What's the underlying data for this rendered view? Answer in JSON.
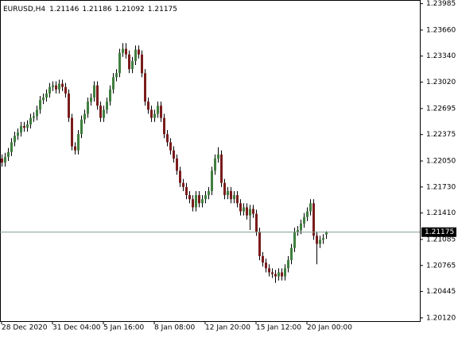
{
  "chart_data": {
    "type": "candlestick",
    "title": "EURUSD,H4",
    "categories": [
      "28 Dec 2020",
      null,
      null,
      null,
      null,
      null,
      null,
      null,
      null,
      null,
      null,
      null,
      null,
      null,
      null,
      null,
      "31 Dec 04:00",
      null,
      null,
      null,
      null,
      null,
      null,
      null,
      null,
      null,
      null,
      null,
      null,
      null,
      null,
      null,
      "5 Jan 16:00",
      null,
      null,
      null,
      null,
      null,
      null,
      null,
      null,
      null,
      null,
      null,
      null,
      null,
      null,
      null,
      "8 Jan 08:00",
      null,
      null,
      null,
      null,
      null,
      null,
      null,
      null,
      null,
      null,
      null,
      null,
      null,
      null,
      null,
      "12 Jan 20:00",
      null,
      null,
      null,
      null,
      null,
      null,
      null,
      null,
      null,
      null,
      null,
      null,
      null,
      null,
      null,
      "15 Jan 12:00",
      null,
      null,
      null,
      null,
      null,
      null,
      null,
      null,
      null,
      null,
      null,
      null,
      null,
      null,
      null,
      "20 Jan 00:00",
      null,
      null,
      null,
      null,
      null,
      null
    ],
    "open": [
      1.2208,
      1.2203,
      1.221,
      1.2216,
      1.2228,
      1.2236,
      1.224,
      1.2248,
      1.2246,
      1.225,
      1.2258,
      1.226,
      1.2268,
      1.228,
      1.2283,
      1.2288,
      1.2296,
      1.2298,
      1.2293,
      1.23,
      1.2296,
      1.2288,
      1.2258,
      1.2223,
      1.2218,
      1.2238,
      1.2256,
      1.2263,
      1.2278,
      1.2283,
      1.2298,
      1.2273,
      1.2258,
      1.2268,
      1.2278,
      1.2293,
      1.2308,
      1.2313,
      1.2338,
      1.2343,
      1.2336,
      1.2318,
      1.2328,
      1.2342,
      1.2336,
      1.2313,
      1.2278,
      1.2268,
      1.2258,
      1.2263,
      1.2273,
      1.2258,
      1.2238,
      1.2228,
      1.2218,
      1.2208,
      1.2193,
      1.2178,
      1.2173,
      1.2163,
      1.2158,
      1.2148,
      1.2163,
      1.2153,
      1.2158,
      1.2163,
      1.2168,
      1.2193,
      1.2208,
      1.2213,
      1.2178,
      1.2163,
      1.2168,
      1.2158,
      1.2163,
      1.2153,
      1.2143,
      1.2148,
      1.2138,
      1.2146,
      1.214,
      1.2118,
      1.2088,
      1.208,
      1.2073,
      1.2068,
      1.2066,
      1.2063,
      1.2068,
      1.2063,
      1.2073,
      1.2083,
      1.2098,
      1.2118,
      1.212,
      1.2128,
      1.2136,
      1.2143,
      1.2153,
      1.2113,
      1.2103,
      1.2108,
      1.21146
    ],
    "high": [
      1.2213,
      1.2215,
      1.2221,
      1.2233,
      1.2241,
      1.2245,
      1.2253,
      1.2253,
      1.2255,
      1.2263,
      1.2265,
      1.2273,
      1.2285,
      1.2288,
      1.2293,
      1.2301,
      1.2303,
      1.2303,
      1.2305,
      1.2305,
      1.2301,
      1.2293,
      1.2263,
      1.2228,
      1.2243,
      1.2261,
      1.2268,
      1.2283,
      1.2288,
      1.2303,
      1.2303,
      1.2278,
      1.2273,
      1.2283,
      1.2298,
      1.2313,
      1.2318,
      1.2343,
      1.235,
      1.235,
      1.2341,
      1.2333,
      1.2347,
      1.2347,
      1.2341,
      1.2318,
      1.2283,
      1.2273,
      1.2268,
      1.2278,
      1.2278,
      1.2263,
      1.2243,
      1.2233,
      1.2223,
      1.2213,
      1.2198,
      1.2183,
      1.2178,
      1.2168,
      1.2163,
      1.2168,
      1.2168,
      1.2163,
      1.2168,
      1.2173,
      1.2198,
      1.2213,
      1.2222,
      1.2218,
      1.2183,
      1.2173,
      1.2173,
      1.2168,
      1.2168,
      1.2158,
      1.2153,
      1.2153,
      1.2151,
      1.2151,
      1.2145,
      1.2123,
      1.2093,
      1.2085,
      1.2078,
      1.2073,
      1.2071,
      1.2073,
      1.2073,
      1.2078,
      1.2088,
      1.2103,
      1.2123,
      1.2125,
      1.2133,
      1.2141,
      1.2148,
      1.2158,
      1.2158,
      1.2118,
      1.2113,
      1.2115,
      1.21186
    ],
    "low": [
      1.2198,
      1.2198,
      1.2205,
      1.2211,
      1.2223,
      1.2231,
      1.2235,
      1.2241,
      1.2241,
      1.2245,
      1.2253,
      1.2255,
      1.2263,
      1.2275,
      1.2278,
      1.2283,
      1.2291,
      1.2288,
      1.2288,
      1.2291,
      1.2283,
      1.2253,
      1.2218,
      1.2213,
      1.2213,
      1.2233,
      1.2251,
      1.2258,
      1.2273,
      1.2278,
      1.2268,
      1.2253,
      1.2253,
      1.2263,
      1.2273,
      1.2288,
      1.2303,
      1.2308,
      1.2333,
      1.2331,
      1.2313,
      1.2313,
      1.2323,
      1.2331,
      1.2308,
      1.2273,
      1.2263,
      1.2253,
      1.2253,
      1.2258,
      1.2253,
      1.2233,
      1.2223,
      1.2213,
      1.2203,
      1.2188,
      1.2173,
      1.2168,
      1.2158,
      1.2153,
      1.2143,
      1.2143,
      1.2148,
      1.2148,
      1.2153,
      1.2158,
      1.2163,
      1.2188,
      1.2203,
      1.2173,
      1.2158,
      1.2158,
      1.2153,
      1.2153,
      1.2148,
      1.2138,
      1.2138,
      1.2133,
      1.212,
      1.2135,
      1.2113,
      1.2083,
      1.2075,
      1.2068,
      1.2063,
      1.2061,
      1.2055,
      1.2058,
      1.2058,
      1.2058,
      1.2068,
      1.2078,
      1.2093,
      1.2113,
      1.2115,
      1.2123,
      1.2131,
      1.2138,
      1.2108,
      1.2078,
      1.2098,
      1.2103,
      1.21092
    ],
    "close": [
      1.2203,
      1.221,
      1.2216,
      1.2228,
      1.2236,
      1.224,
      1.2248,
      1.2246,
      1.225,
      1.2258,
      1.226,
      1.2268,
      1.228,
      1.2283,
      1.2288,
      1.2296,
      1.2298,
      1.2293,
      1.23,
      1.2296,
      1.2288,
      1.2258,
      1.2223,
      1.2218,
      1.2238,
      1.2256,
      1.2263,
      1.2278,
      1.2283,
      1.2298,
      1.2273,
      1.2258,
      1.2268,
      1.2278,
      1.2293,
      1.2308,
      1.2313,
      1.2338,
      1.2343,
      1.2336,
      1.2318,
      1.2328,
      1.2342,
      1.2336,
      1.2313,
      1.2278,
      1.2268,
      1.2258,
      1.2263,
      1.2273,
      1.2258,
      1.2238,
      1.2228,
      1.2218,
      1.2208,
      1.2193,
      1.2178,
      1.2173,
      1.2163,
      1.2158,
      1.2148,
      1.2163,
      1.2153,
      1.2158,
      1.2163,
      1.2168,
      1.2193,
      1.2208,
      1.2213,
      1.2178,
      1.2163,
      1.2168,
      1.2158,
      1.2163,
      1.2153,
      1.2143,
      1.2148,
      1.2138,
      1.2146,
      1.214,
      1.2118,
      1.2088,
      1.208,
      1.2073,
      1.2068,
      1.2066,
      1.2063,
      1.2068,
      1.2063,
      1.2073,
      1.2083,
      1.2098,
      1.2118,
      1.212,
      1.2128,
      1.2136,
      1.2143,
      1.2153,
      1.2113,
      1.2103,
      1.2108,
      1.211,
      1.21175
    ],
    "up_color": "#3f7f3f",
    "down_color": "#7a1c1c",
    "wick_color": "#000000",
    "price_line_color": "#7f9a8a",
    "ylim": [
      1.2008,
      1.2403
    ],
    "yticks": [
      1.23985,
      {
        "value": 1.2366,
        "label": "1.23660"
      },
      {
        "value": 1.2334,
        "label": "1.23340"
      },
      {
        "value": 1.2302,
        "label": "1.23020"
      },
      1.22695,
      1.22375,
      {
        "value": 1.2205,
        "label": "1.22050"
      },
      {
        "value": 1.2173,
        "label": "1.21730"
      },
      {
        "value": 1.2141,
        "label": "1.21410"
      },
      1.21085,
      1.20765,
      1.20445,
      {
        "value": 1.2012,
        "label": "1.20120"
      }
    ],
    "grid": false
  }
}
